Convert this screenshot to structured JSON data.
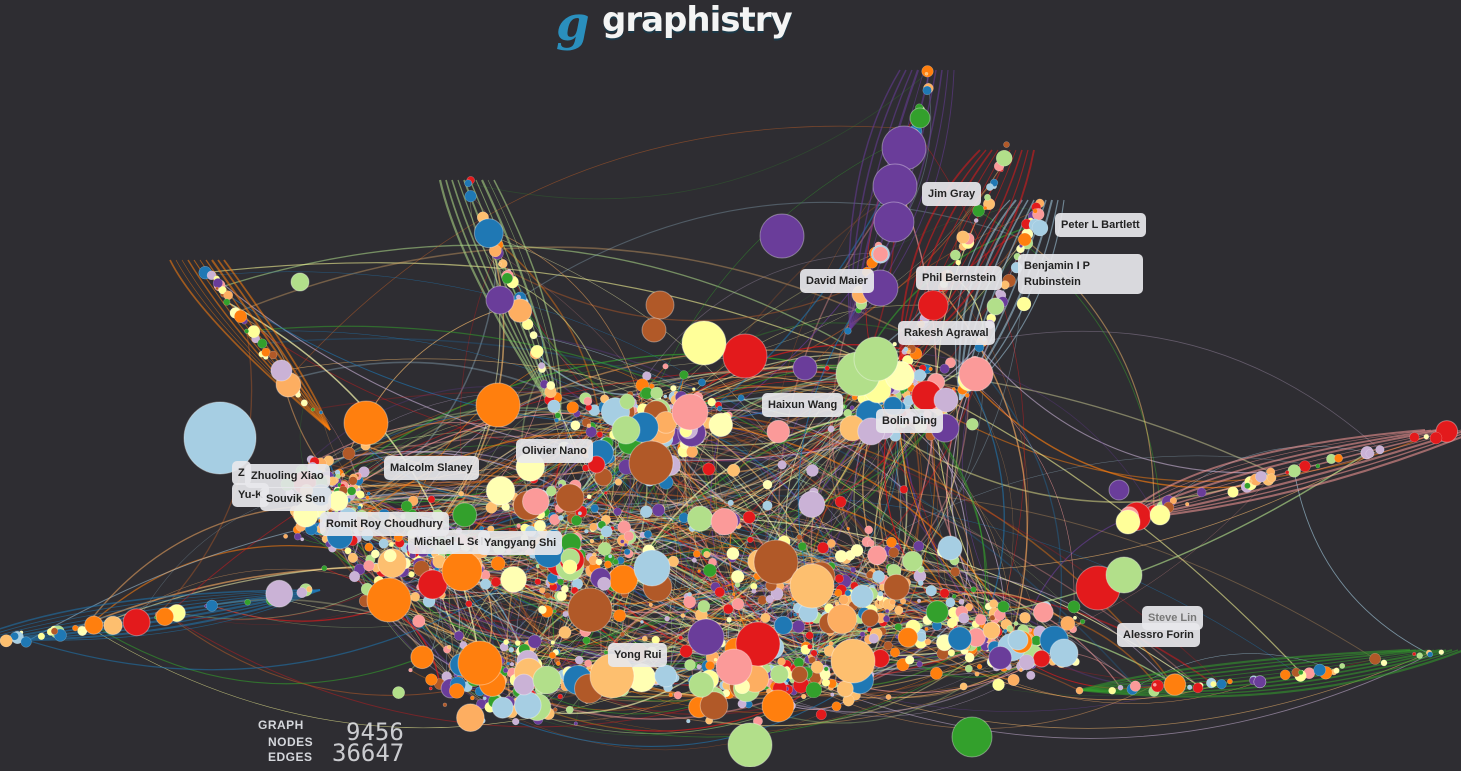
{
  "app": {
    "logo_letter": "g",
    "logo_text": "graphistry"
  },
  "labels": {
    "jim_gray": "Jim Gray",
    "peter_bartlett": "Peter L Bartlett",
    "david_maier": "David Maier",
    "phil_bernstein": "Phil Bernstein",
    "benjamin_rubinstein": "Benjamin I P\nRubinstein",
    "rakesh_agrawal": "Rakesh Agrawal",
    "haixun_wang": "Haixun Wang",
    "bolin_ding": "Bolin Ding",
    "olivier_nano": "Olivier Nano",
    "zhuoling_xiao": "Zhuoling Xiao",
    "z_partial": "Z",
    "yu_partial": "Yu-K",
    "malcolm_slaney": "Malcolm Slaney",
    "souvik_sen": "Souvik Sen",
    "romit_roy_choudhury": "Romit Roy Choudhury",
    "michael_partial": "Michael L Sel",
    "yangyang_shi": "Yangyang Shi",
    "yong_rui": "Yong Rui",
    "steve_lin": "Steve Lin",
    "alessro_forin": "Alessro Forin"
  },
  "stats": {
    "graph_label": "GRAPH",
    "nodes_label": "NODES",
    "edges_label": "EDGES",
    "nodes_value": "9456",
    "edges_value": "36647"
  },
  "palette": [
    "#6a3d9a",
    "#ff7f0e",
    "#a6cee3",
    "#1f78b4",
    "#b2df8a",
    "#33a02c",
    "#fb9a99",
    "#e31a1c",
    "#fdbf6f",
    "#ffff99",
    "#cab2d6",
    "#b15928",
    "#fdae61",
    "#ffffb3"
  ]
}
